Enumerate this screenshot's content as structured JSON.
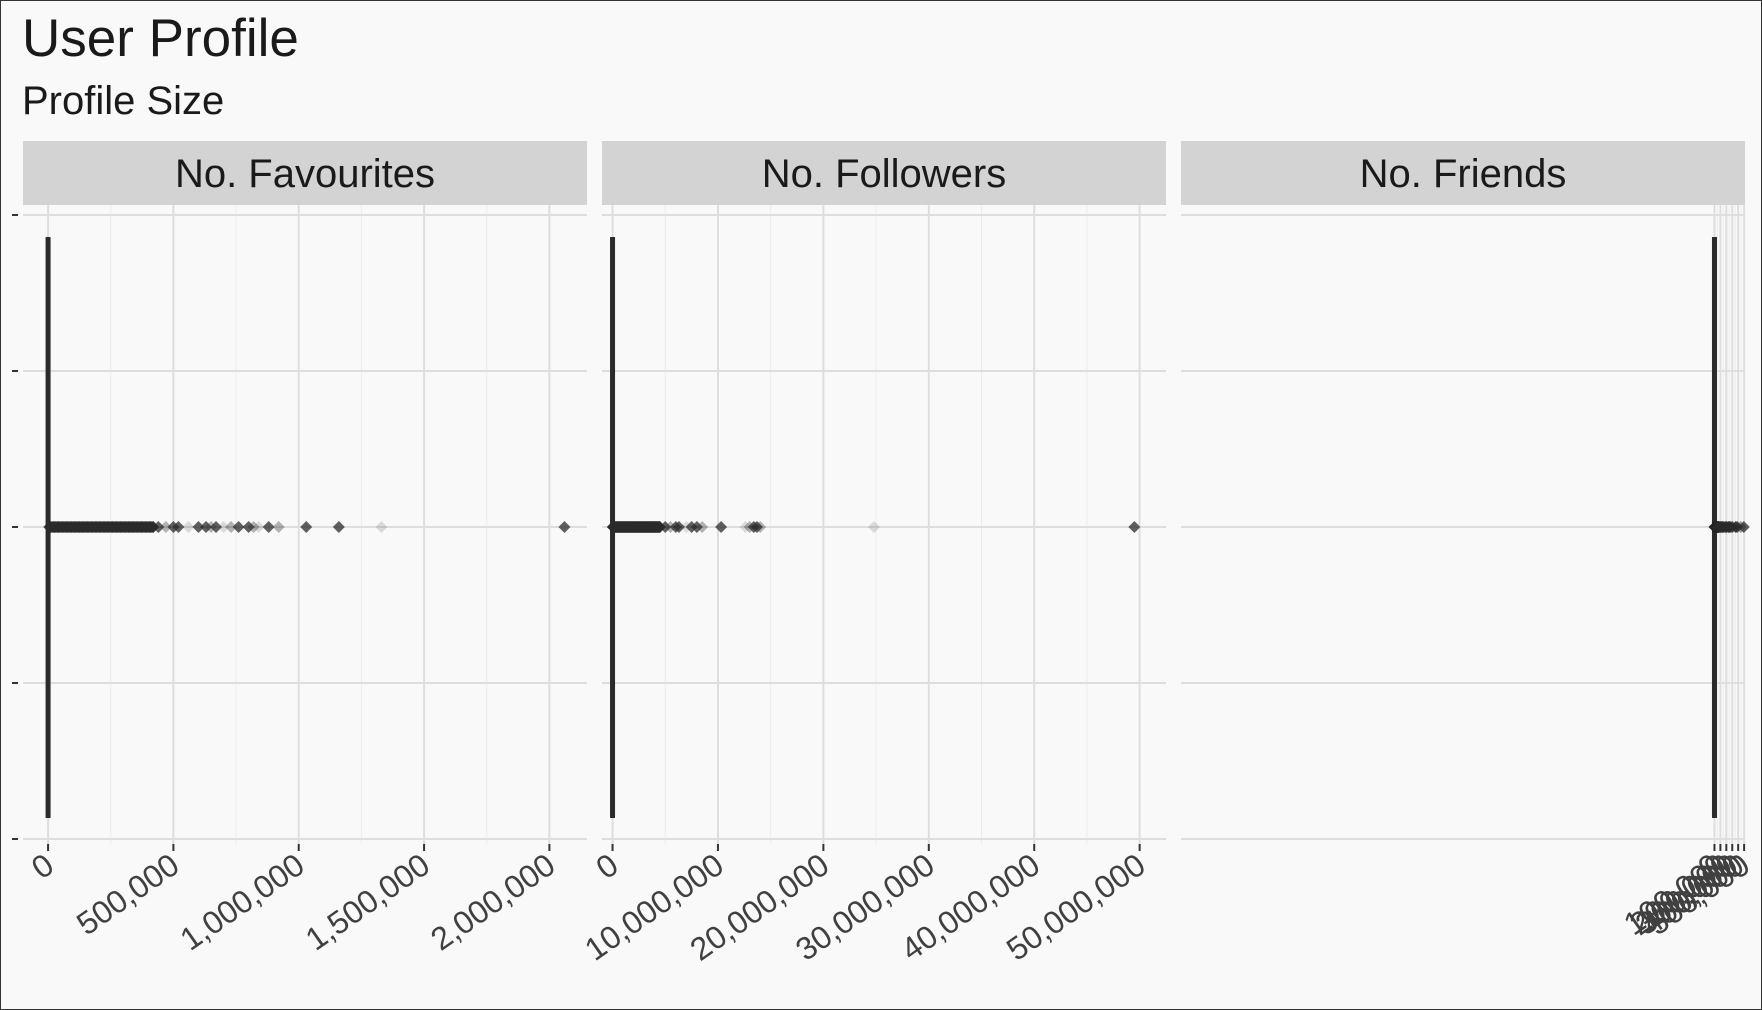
{
  "chart_data": {
    "type": "boxplot",
    "title": "User Profile",
    "subtitle": "Profile Size",
    "xlabel": "",
    "ylabel": "",
    "grid": true,
    "legend": "none",
    "colors": {
      "background": "#f9f9f9",
      "strip": "#d3d3d3",
      "grid": "#dedede",
      "marks": "#2b2b2b",
      "text": "#1a1a1a",
      "tick_text": "#404040"
    },
    "panels": [
      {
        "name": "No. Favourites",
        "xlim": [
          -100000,
          2150000
        ],
        "ticks": [
          0,
          500000,
          1000000,
          1500000,
          2000000
        ],
        "tick_labels": [
          "0",
          "500,000",
          "1,000,000",
          "1,500,000",
          "2,000,000"
        ],
        "box": {
          "min": 0,
          "q1": 0,
          "median": 0,
          "q3": 1000,
          "max": 2000
        },
        "dense_outliers": {
          "from": 5000,
          "to": 420000,
          "n": 80
        },
        "outliers": [
          440000,
          470000,
          500000,
          520000,
          560000,
          600000,
          630000,
          650000,
          670000,
          700000,
          730000,
          760000,
          800000,
          820000,
          840000,
          880000,
          920000,
          1030000,
          1160000,
          1330000,
          2060000
        ]
      },
      {
        "name": "No. Followers",
        "xlim": [
          -1000000,
          52500000
        ],
        "ticks": [
          0,
          10000000,
          20000000,
          30000000,
          40000000,
          50000000
        ],
        "tick_labels": [
          "0",
          "10,000,000",
          "20,000,000",
          "30,000,000",
          "40,000,000",
          "50,000,000"
        ],
        "box": {
          "min": 0,
          "q1": 0,
          "median": 0,
          "q3": 5000,
          "max": 10000
        },
        "dense_outliers": {
          "from": 20000,
          "to": 4500000,
          "n": 70
        },
        "outliers": [
          5000000,
          5500000,
          6000000,
          6300000,
          7000000,
          7500000,
          8000000,
          8500000,
          10300000,
          12600000,
          13000000,
          13400000,
          13700000,
          14000000,
          24800000,
          49500000
        ]
      },
      {
        "name": "No. Friends",
        "xlim": [
          -9000000,
          515000
        ],
        "ticks": [
          0,
          100000,
          200000,
          300000,
          400000,
          500000
        ],
        "tick_labels": [
          "0",
          "100,000",
          "200,000",
          "300,000",
          "400,000",
          "500,000"
        ],
        "box": {
          "min": 0,
          "q1": 0,
          "median": 0,
          "q3": 500,
          "max": 1000
        },
        "dense_outliers": {
          "from": 3000,
          "to": 65000,
          "n": 80
        },
        "outliers": [
          70000,
          80000,
          90000,
          100000,
          110000,
          120000,
          130000,
          140000,
          150000,
          155000,
          170000,
          185000,
          200000,
          210000,
          232000,
          235000,
          240000,
          255000,
          272000,
          285000,
          304000,
          357000,
          362000,
          383000,
          436000,
          444000,
          495000
        ]
      }
    ]
  }
}
